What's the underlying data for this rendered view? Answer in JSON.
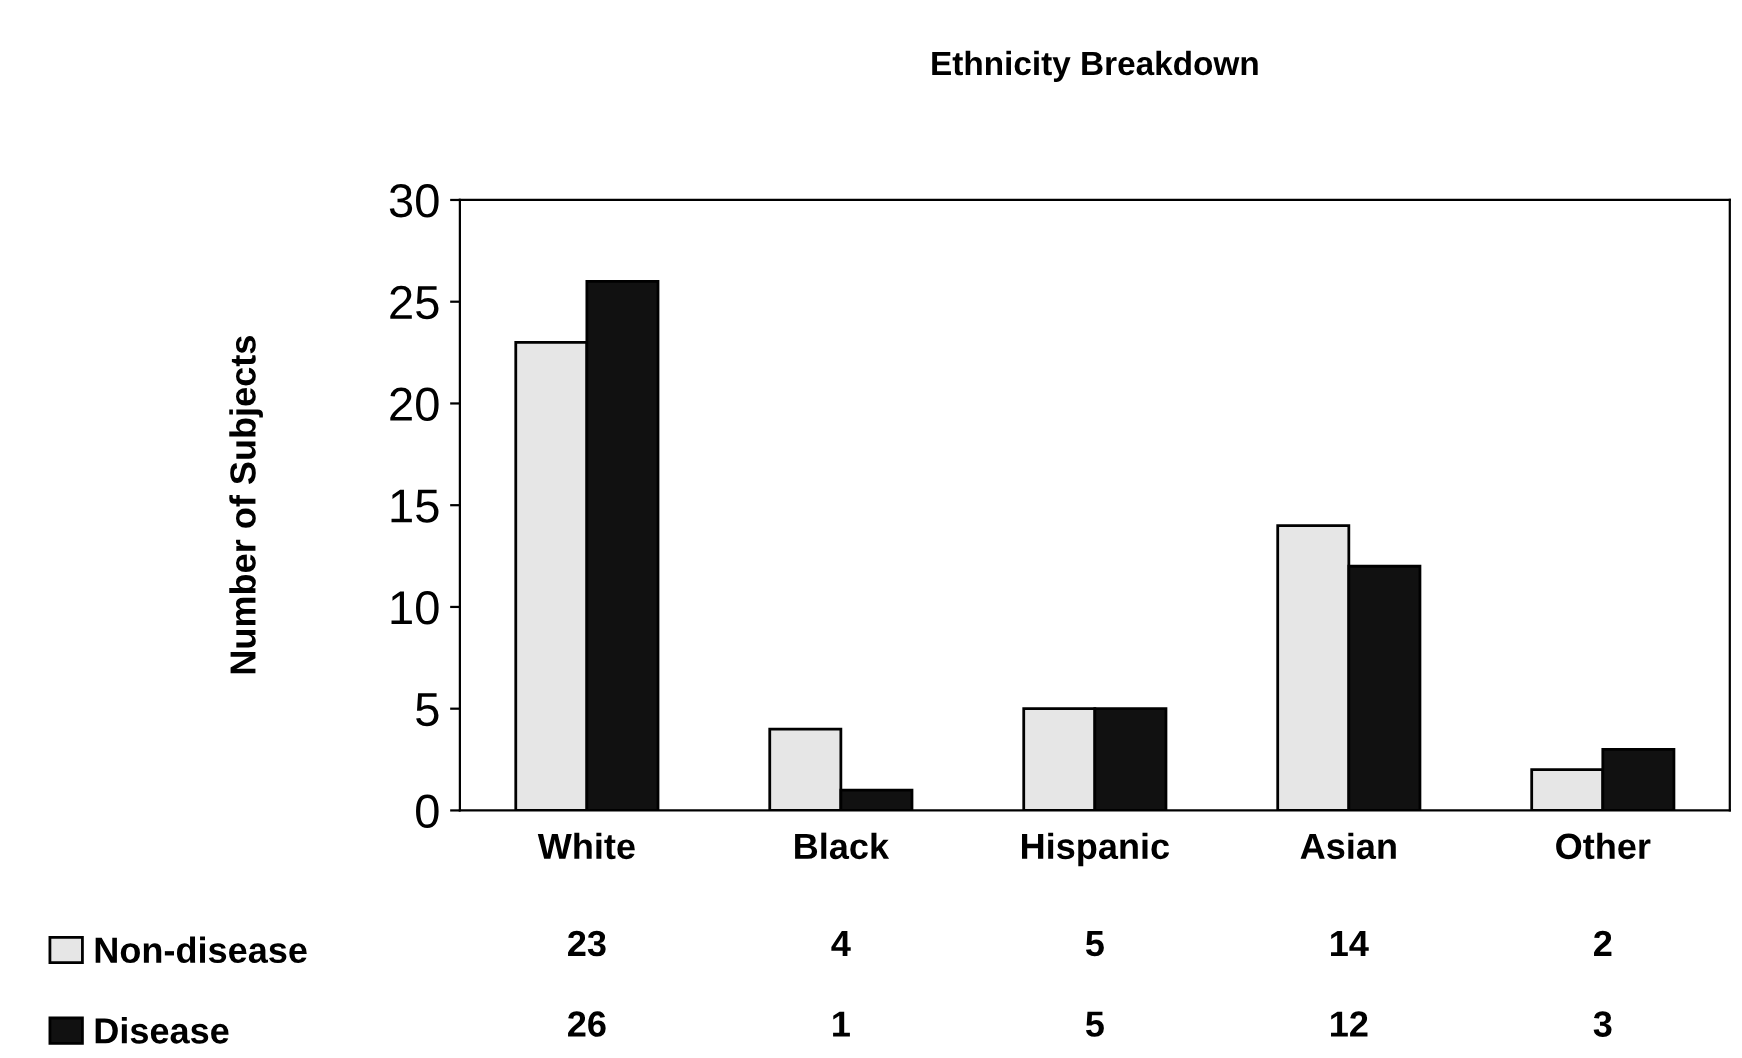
{
  "chart_data": {
    "type": "bar",
    "title": "Ethnicity Breakdown",
    "ylabel": "Number of Subjects",
    "categories": [
      "White",
      "Black",
      "Hispanic",
      "Asian",
      "Other"
    ],
    "series": [
      {
        "name": "Non-disease",
        "color": "#e6e6e6",
        "values": [
          23,
          4,
          5,
          14,
          2
        ]
      },
      {
        "name": "Disease",
        "color": "#111111",
        "values": [
          26,
          1,
          5,
          12,
          3
        ]
      }
    ],
    "ylim": [
      0,
      30
    ],
    "yticks": [
      0,
      5,
      10,
      15,
      20,
      25,
      30
    ],
    "grid": false,
    "legend": "bottom",
    "data_labels": true
  }
}
